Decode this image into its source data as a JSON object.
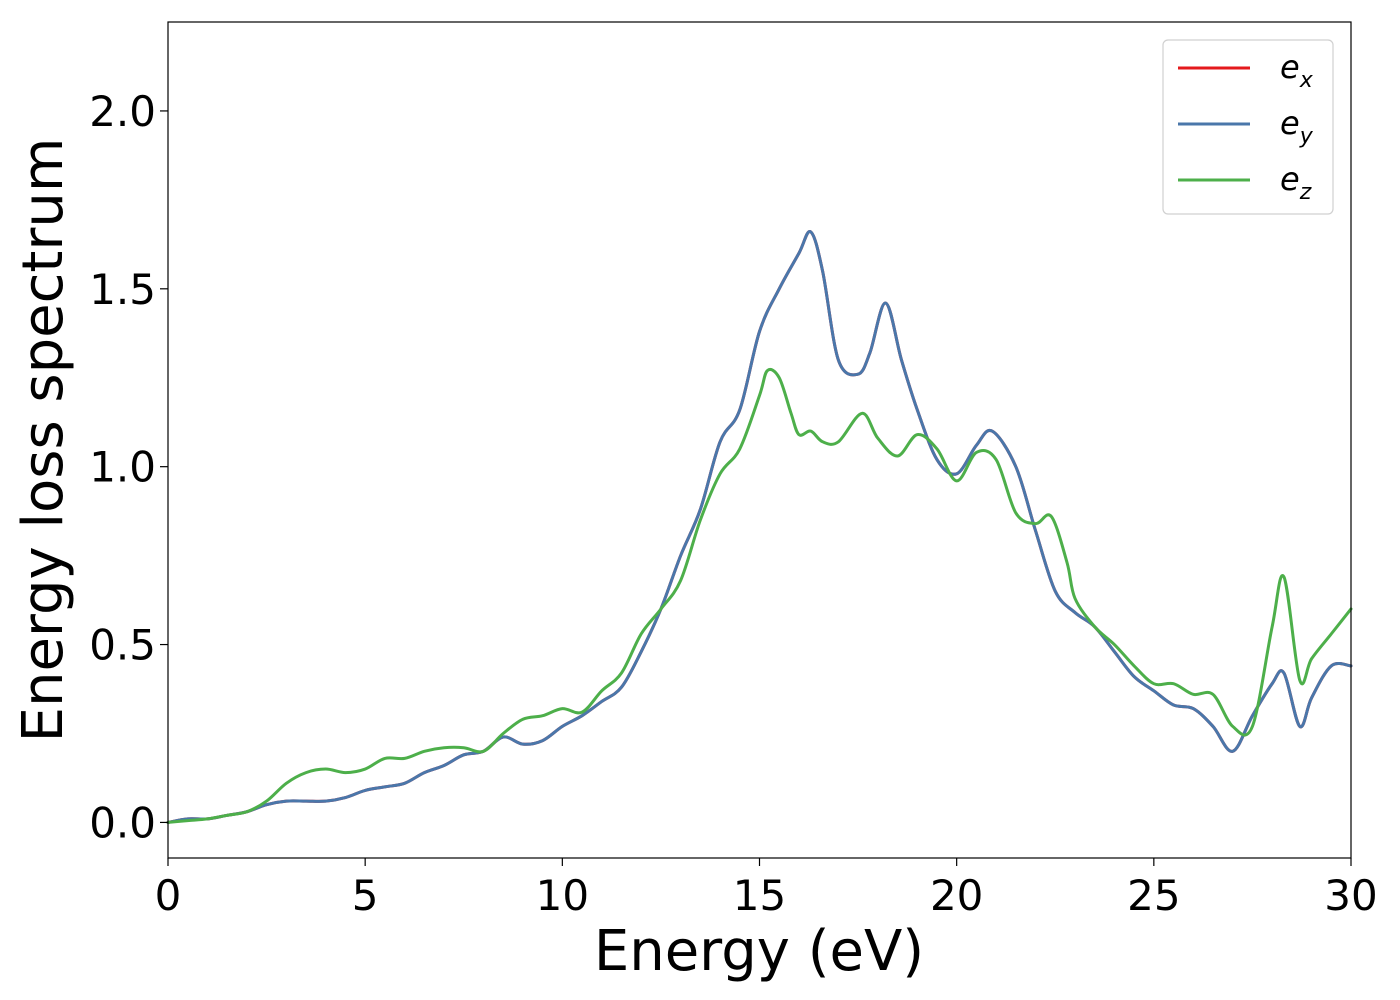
{
  "chart_data": {
    "type": "line",
    "title": "",
    "xlabel": "Energy (eV)",
    "ylabel": "Energy loss spectrum",
    "xlim": [
      0,
      30
    ],
    "ylim": [
      -0.1,
      2.25
    ],
    "xticks": [
      0,
      5,
      10,
      15,
      20,
      25,
      30
    ],
    "yticks": [
      0.0,
      0.5,
      1.0,
      1.5,
      2.0
    ],
    "xtick_labels": [
      "0",
      "5",
      "10",
      "15",
      "20",
      "25",
      "30"
    ],
    "ytick_labels": [
      "0.0",
      "0.5",
      "1.0",
      "1.5",
      "2.0"
    ],
    "grid": false,
    "legend_position": "top-right",
    "series": [
      {
        "name": "e_x",
        "legend_base": "e",
        "legend_sub": "x",
        "color": "#e41a1c",
        "x": [
          0,
          0.5,
          1,
          1.5,
          2,
          2.5,
          3,
          3.5,
          4,
          4.5,
          5,
          5.5,
          6,
          6.5,
          7,
          7.5,
          8,
          8.5,
          9,
          9.5,
          10,
          10.5,
          11,
          11.5,
          12,
          12.5,
          13,
          13.5,
          14,
          14.5,
          15,
          15.5,
          16,
          16.3,
          16.6,
          17,
          17.5,
          17.8,
          18.2,
          18.6,
          19,
          19.5,
          20,
          20.5,
          20.9,
          21.5,
          22,
          22.5,
          23,
          23.5,
          24,
          24.5,
          25,
          25.5,
          26,
          26.5,
          27,
          27.5,
          28,
          28.3,
          28.7,
          29,
          29.5,
          30
        ],
        "y": [
          0.0,
          0.01,
          0.01,
          0.02,
          0.03,
          0.05,
          0.06,
          0.06,
          0.06,
          0.07,
          0.09,
          0.1,
          0.11,
          0.14,
          0.16,
          0.19,
          0.2,
          0.24,
          0.22,
          0.23,
          0.27,
          0.3,
          0.34,
          0.38,
          0.48,
          0.6,
          0.75,
          0.88,
          1.07,
          1.16,
          1.38,
          1.5,
          1.6,
          1.66,
          1.55,
          1.3,
          1.26,
          1.32,
          1.46,
          1.3,
          1.16,
          1.02,
          0.98,
          1.06,
          1.1,
          1.0,
          0.82,
          0.65,
          0.59,
          0.55,
          0.48,
          0.41,
          0.37,
          0.33,
          0.32,
          0.27,
          0.2,
          0.3,
          0.39,
          0.42,
          0.27,
          0.35,
          0.44,
          0.44
        ]
      },
      {
        "name": "e_y",
        "legend_base": "e",
        "legend_sub": "y",
        "color": "#4a77aa",
        "x": [
          0,
          0.5,
          1,
          1.5,
          2,
          2.5,
          3,
          3.5,
          4,
          4.5,
          5,
          5.5,
          6,
          6.5,
          7,
          7.5,
          8,
          8.5,
          9,
          9.5,
          10,
          10.5,
          11,
          11.5,
          12,
          12.5,
          13,
          13.5,
          14,
          14.5,
          15,
          15.5,
          16,
          16.3,
          16.6,
          17,
          17.5,
          17.8,
          18.2,
          18.6,
          19,
          19.5,
          20,
          20.5,
          20.9,
          21.5,
          22,
          22.5,
          23,
          23.5,
          24,
          24.5,
          25,
          25.5,
          26,
          26.5,
          27,
          27.5,
          28,
          28.3,
          28.7,
          29,
          29.5,
          30
        ],
        "y": [
          0.0,
          0.01,
          0.01,
          0.02,
          0.03,
          0.05,
          0.06,
          0.06,
          0.06,
          0.07,
          0.09,
          0.1,
          0.11,
          0.14,
          0.16,
          0.19,
          0.2,
          0.24,
          0.22,
          0.23,
          0.27,
          0.3,
          0.34,
          0.38,
          0.48,
          0.6,
          0.75,
          0.88,
          1.07,
          1.16,
          1.38,
          1.5,
          1.6,
          1.66,
          1.55,
          1.3,
          1.26,
          1.32,
          1.46,
          1.3,
          1.16,
          1.02,
          0.98,
          1.06,
          1.1,
          1.0,
          0.82,
          0.65,
          0.59,
          0.55,
          0.48,
          0.41,
          0.37,
          0.33,
          0.32,
          0.27,
          0.2,
          0.3,
          0.39,
          0.42,
          0.27,
          0.35,
          0.44,
          0.44
        ]
      },
      {
        "name": "e_z",
        "legend_base": "e",
        "legend_sub": "z",
        "color": "#4daf4a",
        "x": [
          0,
          0.5,
          1,
          1.5,
          2,
          2.5,
          3,
          3.5,
          4,
          4.5,
          5,
          5.5,
          6,
          6.5,
          7,
          7.5,
          8,
          8.5,
          9,
          9.5,
          10,
          10.5,
          11,
          11.5,
          12,
          12.5,
          13,
          13.5,
          14,
          14.5,
          15,
          15.2,
          15.5,
          15.8,
          16,
          16.3,
          16.6,
          17,
          17.6,
          18,
          18.5,
          19,
          19.5,
          20,
          20.5,
          21,
          21.5,
          22,
          22.4,
          22.8,
          23,
          23.5,
          24,
          24.5,
          25,
          25.5,
          26,
          26.5,
          27,
          27.5,
          28,
          28.3,
          28.7,
          29,
          29.5,
          30
        ],
        "y": [
          0.0,
          0.005,
          0.01,
          0.02,
          0.03,
          0.06,
          0.11,
          0.14,
          0.15,
          0.14,
          0.15,
          0.18,
          0.18,
          0.2,
          0.21,
          0.21,
          0.2,
          0.25,
          0.29,
          0.3,
          0.32,
          0.31,
          0.37,
          0.42,
          0.53,
          0.6,
          0.68,
          0.85,
          0.98,
          1.05,
          1.2,
          1.27,
          1.25,
          1.15,
          1.09,
          1.1,
          1.07,
          1.07,
          1.15,
          1.08,
          1.03,
          1.09,
          1.05,
          0.96,
          1.04,
          1.02,
          0.87,
          0.84,
          0.86,
          0.73,
          0.63,
          0.55,
          0.5,
          0.44,
          0.39,
          0.39,
          0.36,
          0.36,
          0.27,
          0.27,
          0.55,
          0.69,
          0.4,
          0.46,
          0.53,
          0.6
        ]
      }
    ]
  }
}
